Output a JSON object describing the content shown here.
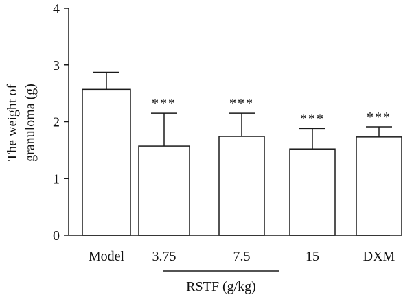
{
  "chart_data": {
    "type": "bar",
    "title": "",
    "categories": [
      "Model",
      "3.75",
      "7.5",
      "15",
      "DXM"
    ],
    "values": [
      2.57,
      1.57,
      1.74,
      1.52,
      1.73
    ],
    "error": [
      0.3,
      0.58,
      0.41,
      0.36,
      0.18
    ],
    "significance": [
      "",
      "***",
      "***",
      "***",
      "***"
    ],
    "ylabel_lines": [
      "The weight of",
      "granuloma (g)"
    ],
    "xlabel": "",
    "group_label": "RSTF (g/kg)",
    "group_span": [
      "3.75",
      "15"
    ],
    "ylim": [
      0,
      4
    ],
    "yticks": [
      0,
      1,
      2,
      3,
      4
    ],
    "grid": false,
    "bar_fill": "#ffffff",
    "stroke_color": "#1a1a1a"
  }
}
